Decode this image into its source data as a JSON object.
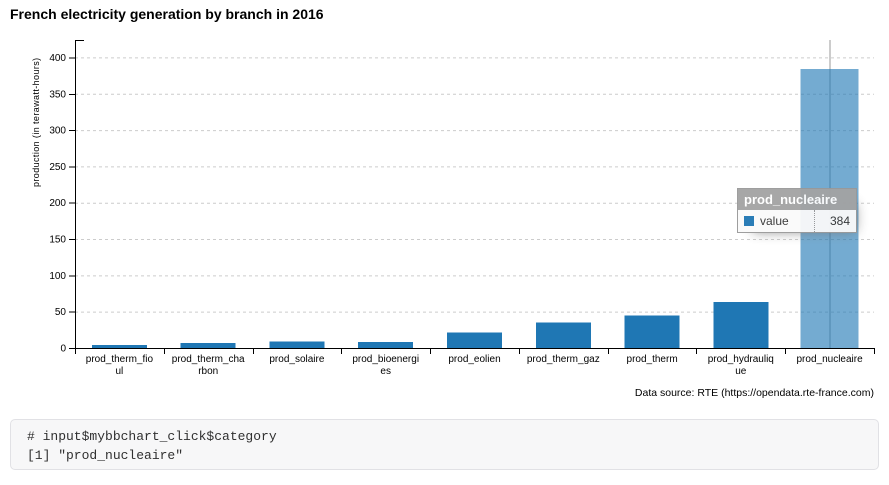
{
  "chart_data": {
    "type": "bar",
    "title": "French electricity generation by branch in 2016",
    "xlabel": "",
    "ylabel": "production (in terawatt-hours)",
    "caption": "Data source: RTE (https://opendata.rte-france.com)",
    "categories": [
      "prod_therm_fioul",
      "prod_therm_charbon",
      "prod_solaire",
      "prod_bioenergies",
      "prod_eolien",
      "prod_therm_gaz",
      "prod_therm",
      "prod_hydraulique",
      "prod_nucleaire"
    ],
    "category_tick_lines": [
      [
        "prod_therm_fio",
        "ul"
      ],
      [
        "prod_therm_cha",
        "rbon"
      ],
      [
        "prod_solaire"
      ],
      [
        "prod_bioenergi",
        "es"
      ],
      [
        "prod_eolien"
      ],
      [
        "prod_therm_gaz"
      ],
      [
        "prod_therm"
      ],
      [
        "prod_hydrauliq",
        "ue"
      ],
      [
        "prod_nucleaire"
      ]
    ],
    "series": [
      {
        "name": "value",
        "values": [
          4,
          7,
          9,
          8.5,
          21,
          35,
          45,
          63,
          384
        ]
      }
    ],
    "ylim": [
      0,
      424
    ],
    "yticks": [
      0,
      50,
      100,
      150,
      200,
      250,
      300,
      350,
      400
    ],
    "grid": {
      "y": true,
      "style": "dashed"
    },
    "legend": "hidden",
    "bar_color": "#1f77b4",
    "highlight": {
      "category": "prod_nucleaire",
      "value": 384,
      "bar_opacity": 0.62,
      "focus_line": true
    }
  },
  "tooltip": {
    "title": "prod_nucleaire",
    "series_label": "value",
    "value": "384",
    "swatch_color": "#1f77b4"
  },
  "console": {
    "line1": "# input$mybbchart_click$category",
    "line2": "[1] \"prod_nucleaire\""
  }
}
